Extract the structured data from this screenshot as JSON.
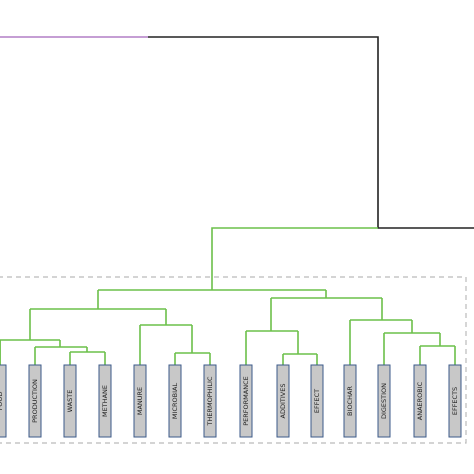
{
  "leaves": [
    "FOOD",
    "PRODUCTION",
    "WASTE",
    "METHANE",
    "MANURE",
    "MICROBIAL",
    "THERMOPHILIC",
    "PERFORMANCE",
    "ADDITIVES",
    "EFFECT",
    "BIOCHAR",
    "DIGESTION",
    "ANAEROBIC",
    "EFFECTS"
  ]
}
